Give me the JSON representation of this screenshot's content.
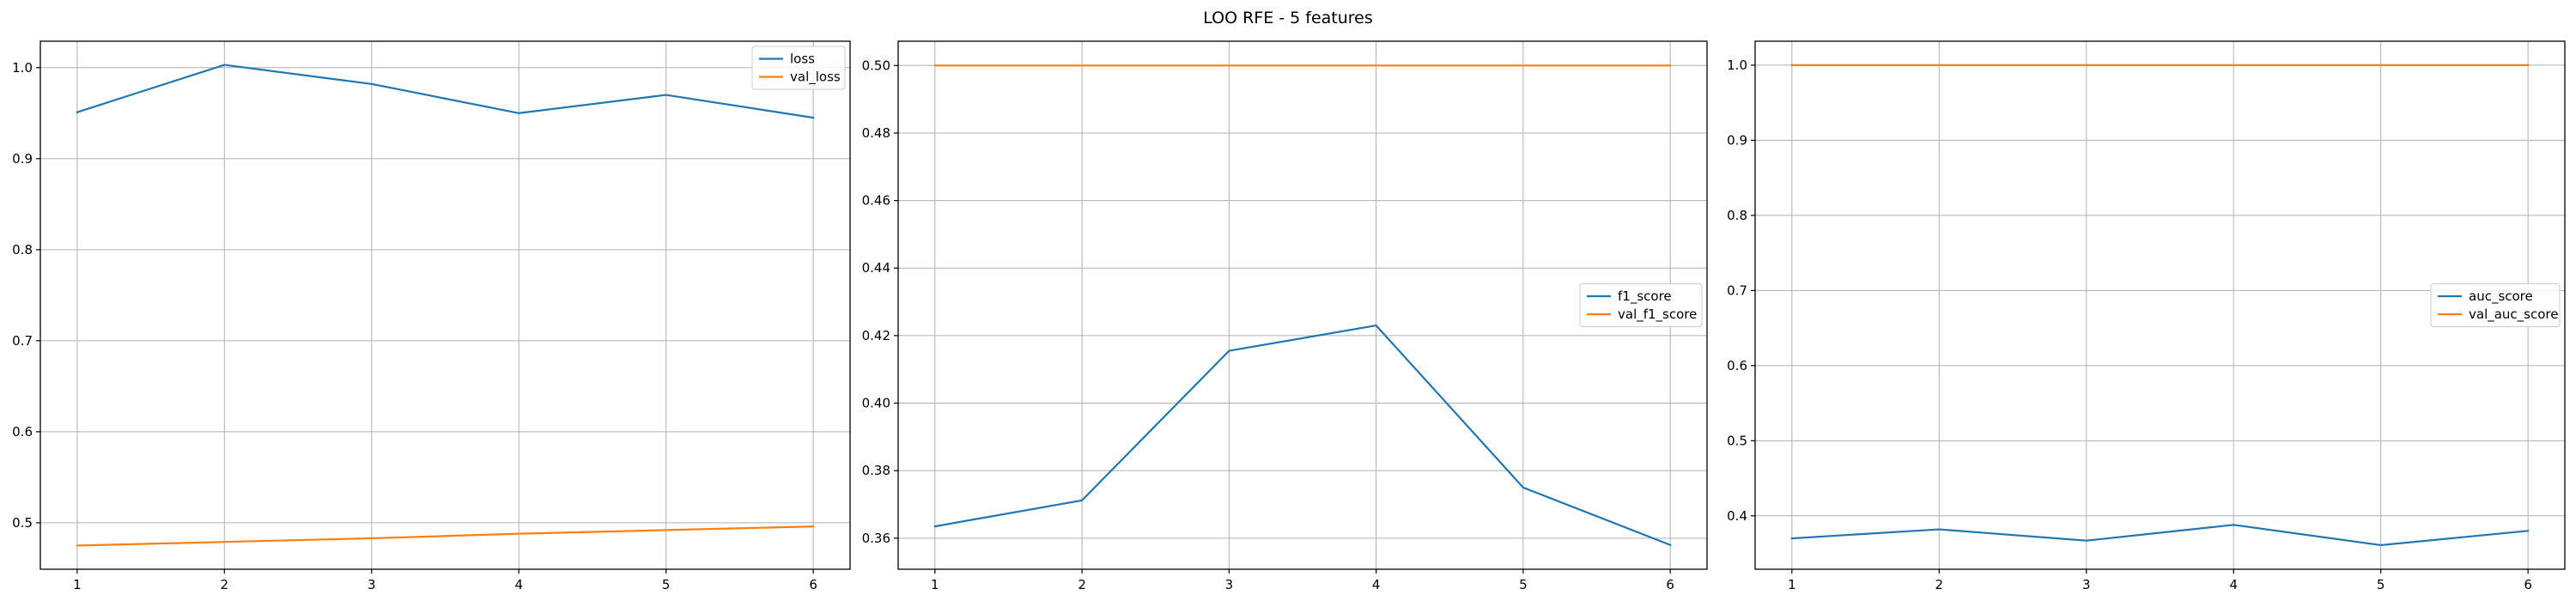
{
  "figure": {
    "title": "LOO RFE - 5 features"
  },
  "colors": {
    "train": "#1f77b4",
    "validation": "#ff7f0e"
  },
  "chart_data": [
    {
      "type": "line",
      "x": [
        1,
        2,
        3,
        4,
        5,
        6
      ],
      "series": [
        {
          "name": "loss",
          "values": [
            0.951,
            1.003,
            0.982,
            0.95,
            0.97,
            0.945
          ]
        },
        {
          "name": "val_loss",
          "values": [
            0.475,
            0.479,
            0.483,
            0.488,
            0.492,
            0.496
          ]
        }
      ],
      "xlim": [
        0.75,
        6.25
      ],
      "ylim": [
        0.449,
        1.029
      ],
      "xticks": [
        1,
        2,
        3,
        4,
        5,
        6
      ],
      "yticks": [
        0.5,
        0.6,
        0.7,
        0.8,
        0.9,
        1.0
      ],
      "ytick_decimals": 1,
      "grid": true,
      "legend_loc": "upper right"
    },
    {
      "type": "line",
      "x": [
        1,
        2,
        3,
        4,
        5,
        6
      ],
      "series": [
        {
          "name": "f1_score",
          "values": [
            0.3635,
            0.3712,
            0.4155,
            0.423,
            0.375,
            0.358
          ]
        },
        {
          "name": "val_f1_score",
          "values": [
            0.5,
            0.5,
            0.5,
            0.5,
            0.5,
            0.5
          ]
        }
      ],
      "xlim": [
        0.75,
        6.25
      ],
      "ylim": [
        0.3508,
        0.5072
      ],
      "xticks": [
        1,
        2,
        3,
        4,
        5,
        6
      ],
      "yticks": [
        0.36,
        0.38,
        0.4,
        0.42,
        0.44,
        0.46,
        0.48,
        0.5
      ],
      "ytick_decimals": 2,
      "grid": true,
      "legend_loc": "center right"
    },
    {
      "type": "line",
      "x": [
        1,
        2,
        3,
        4,
        5,
        6
      ],
      "series": [
        {
          "name": "auc_score",
          "values": [
            0.37,
            0.382,
            0.367,
            0.388,
            0.361,
            0.38
          ]
        },
        {
          "name": "val_auc_score",
          "values": [
            1.0,
            1.0,
            1.0,
            1.0,
            1.0,
            1.0
          ]
        }
      ],
      "xlim": [
        0.75,
        6.25
      ],
      "ylim": [
        0.3289,
        1.0319
      ],
      "xticks": [
        1,
        2,
        3,
        4,
        5,
        6
      ],
      "yticks": [
        0.4,
        0.5,
        0.6,
        0.7,
        0.8,
        0.9,
        1.0
      ],
      "ytick_decimals": 1,
      "grid": true,
      "legend_loc": "center right"
    }
  ]
}
